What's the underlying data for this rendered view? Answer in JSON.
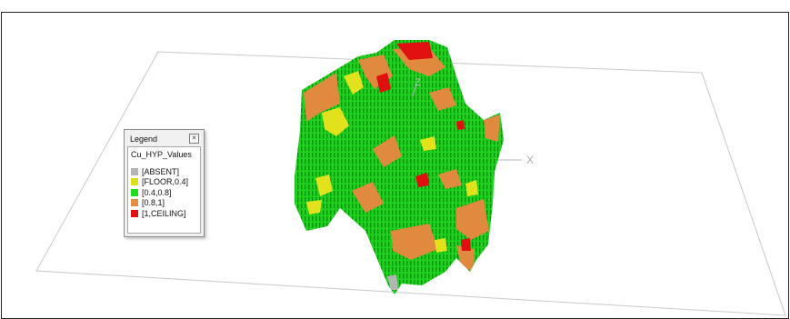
{
  "viewport": {
    "axis_x_label": "X",
    "axis_z_label": "Z"
  },
  "legend": {
    "title": "Legend",
    "close_icon": "close-icon",
    "variable": "Cu_HYP_Values",
    "items": [
      {
        "label": "[ABSENT]",
        "color": "#b4b4b4"
      },
      {
        "label": "[FLOOR,0.4]",
        "color": "#dede1a"
      },
      {
        "label": "[0.4,0.8]",
        "color": "#1fdc1f"
      },
      {
        "label": "[0.8,1]",
        "color": "#e48c40"
      },
      {
        "label": "[1,CEILING]",
        "color": "#e01010"
      }
    ]
  }
}
